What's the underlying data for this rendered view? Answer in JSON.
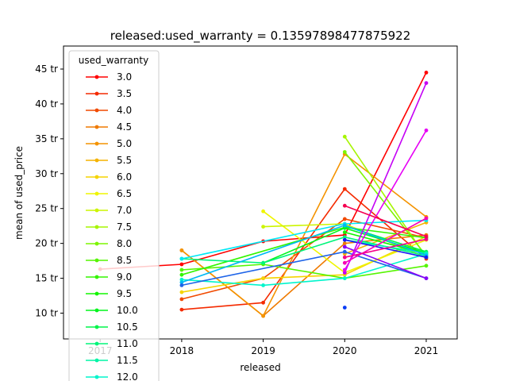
{
  "chart_data": {
    "type": "line",
    "title": "released:used_warranty = 0.13597898477875922",
    "xlabel": "released",
    "ylabel": "mean of used_price",
    "x_ticks": [
      {
        "value": 2017,
        "label": "2017"
      },
      {
        "value": 2018,
        "label": "2018"
      },
      {
        "value": 2019,
        "label": "2019"
      },
      {
        "value": 2020,
        "label": "2020"
      },
      {
        "value": 2021,
        "label": "2021"
      }
    ],
    "y_ticks": [
      {
        "value": 10,
        "label": "10 tr"
      },
      {
        "value": 15,
        "label": "15 tr"
      },
      {
        "value": 20,
        "label": "20 tr"
      },
      {
        "value": 25,
        "label": "25 tr"
      },
      {
        "value": 30,
        "label": "30 tr"
      },
      {
        "value": 35,
        "label": "35 tr"
      },
      {
        "value": 40,
        "label": "40 tr"
      },
      {
        "value": 45,
        "label": "45 tr"
      }
    ],
    "xlim": [
      2016.55,
      2021.38
    ],
    "ylim": [
      6.3,
      48.3
    ],
    "grid": false,
    "legend": {
      "title": "used_warranty",
      "placement": "upper-left"
    },
    "series": [
      {
        "name": "3.0",
        "color": "#ff0000",
        "x": [
          2017,
          2018,
          2019,
          2020,
          2021
        ],
        "y": [
          16.3,
          17.0,
          20.3,
          21.2,
          44.5
        ]
      },
      {
        "name": "3.5",
        "color": "#f42a00",
        "x": [
          2018,
          2019,
          2020,
          2021
        ],
        "y": [
          10.5,
          11.5,
          27.8,
          17.8
        ]
      },
      {
        "name": "4.0",
        "color": "#f14a00",
        "x": [
          2018,
          2019,
          2020,
          2021
        ],
        "y": [
          12.0,
          15.0,
          23.5,
          20.8
        ]
      },
      {
        "name": "4.5",
        "color": "#ef7a00",
        "x": [
          2018,
          2019,
          2020,
          2021
        ],
        "y": [
          19.0,
          9.6,
          20.0,
          21.2
        ]
      },
      {
        "name": "5.0",
        "color": "#f49300",
        "x": [
          2018,
          2019,
          2020,
          2021
        ],
        "y": [
          19.0,
          9.6,
          32.8,
          23.8
        ]
      },
      {
        "name": "5.5",
        "color": "#f5b300",
        "x": [
          2020,
          2021
        ],
        "y": [
          18.5,
          23.0
        ]
      },
      {
        "name": "6.0",
        "color": "#f5d400",
        "x": [
          2018,
          2019,
          2020,
          2021
        ],
        "y": [
          13.0,
          15.0,
          15.5,
          21.0
        ]
      },
      {
        "name": "6.5",
        "color": "#eff500",
        "x": [
          2019,
          2020,
          2021
        ],
        "y": [
          24.6,
          15.8,
          20.5
        ]
      },
      {
        "name": "7.0",
        "color": "#ccf500",
        "x": [
          2019,
          2020,
          2021
        ],
        "y": [
          22.4,
          22.8,
          18.0
        ]
      },
      {
        "name": "7.5",
        "color": "#a6f500",
        "x": [
          2020,
          2021
        ],
        "y": [
          35.3,
          18.0
        ]
      },
      {
        "name": "8.0",
        "color": "#7df500",
        "x": [
          2020,
          2021
        ],
        "y": [
          33.1,
          18.2
        ]
      },
      {
        "name": "8.5",
        "color": "#55f500",
        "x": [
          2018,
          2019,
          2020,
          2021
        ],
        "y": [
          16.2,
          17.0,
          15.0,
          16.8
        ]
      },
      {
        "name": "9.0",
        "color": "#33f500",
        "x": [
          2018,
          2020,
          2021
        ],
        "y": [
          15.5,
          22.3,
          20.8
        ]
      },
      {
        "name": "9.5",
        "color": "#12f500",
        "x": [
          2020,
          2021
        ],
        "y": [
          21.6,
          18.5
        ]
      },
      {
        "name": "10.0",
        "color": "#00f51c",
        "x": [
          2019,
          2020,
          2021
        ],
        "y": [
          17.2,
          22.2,
          18.6
        ]
      },
      {
        "name": "10.5",
        "color": "#00f54a",
        "x": [
          2020,
          2021
        ],
        "y": [
          22.5,
          18.8
        ]
      },
      {
        "name": "11.0",
        "color": "#00f57a",
        "x": [
          2018,
          2019,
          2020,
          2021
        ],
        "y": [
          17.8,
          17.2,
          20.9,
          18.2
        ]
      },
      {
        "name": "11.5",
        "color": "#00f5a6",
        "x": [
          2020,
          2021
        ],
        "y": [
          20.5,
          18.6
        ]
      },
      {
        "name": "12.0",
        "color": "#00f5cc",
        "x": [
          2018,
          2019,
          2020,
          2021
        ],
        "y": [
          14.8,
          14.0,
          15.0,
          18.5
        ]
      },
      {
        "color": "#00e8f5",
        "x": [
          2018,
          2020,
          2021
        ],
        "y": [
          17.8,
          22.8,
          23.3
        ]
      },
      {
        "color": "#00b8f5",
        "x": [
          2018,
          2020,
          2021
        ],
        "y": [
          14.4,
          22.6,
          18.3
        ]
      },
      {
        "color": "#1e64e8",
        "x": [
          2018,
          2020,
          2021
        ],
        "y": [
          14.0,
          18.8,
          15.0
        ]
      },
      {
        "color": "#0a3cf5",
        "x": [
          2020
        ],
        "y": [
          10.8
        ]
      },
      {
        "color": "#1a1af5",
        "x": [
          2020,
          2021
        ],
        "y": [
          20.5,
          18.0
        ]
      },
      {
        "color": "#8a00f5",
        "x": [
          2020,
          2021
        ],
        "y": [
          19.5,
          15.0
        ]
      },
      {
        "color": "#c400f5",
        "x": [
          2020,
          2021
        ],
        "y": [
          15.8,
          43.0
        ]
      },
      {
        "color": "#e600f5",
        "x": [
          2020,
          2021
        ],
        "y": [
          16.2,
          36.2
        ]
      },
      {
        "color": "#f500b8",
        "x": [
          2020,
          2021
        ],
        "y": [
          17.2,
          23.6
        ]
      },
      {
        "color": "#f5008a",
        "x": [
          2020,
          2021
        ],
        "y": [
          18.0,
          20.6
        ]
      },
      {
        "color": "#f50050",
        "x": [
          2020,
          2021
        ],
        "y": [
          25.4,
          21.0
        ]
      }
    ]
  }
}
